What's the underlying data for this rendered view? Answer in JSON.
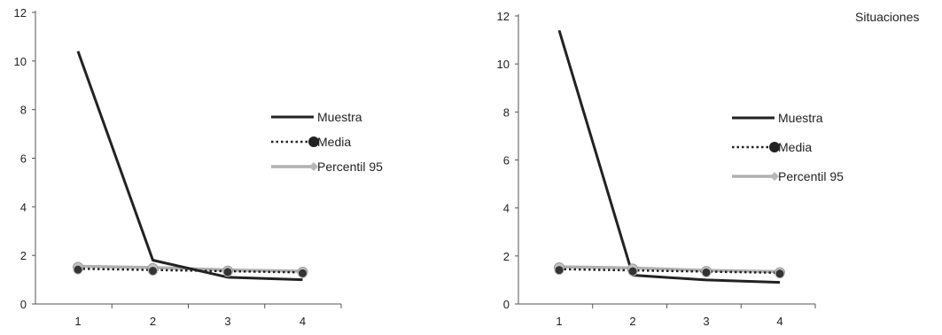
{
  "chart_data": [
    {
      "type": "line",
      "categories": [
        "1",
        "2",
        "3",
        "4"
      ],
      "ylim": [
        0,
        12
      ],
      "yticks": [
        "0",
        "2",
        "4",
        "6",
        "8",
        "10",
        "12"
      ],
      "legend_position": "right",
      "grid": false,
      "series": [
        {
          "name": "Muestra",
          "values": [
            10.4,
            1.8,
            1.1,
            1.0
          ],
          "color": "#222222",
          "style": "solid",
          "marker": "none"
        },
        {
          "name": "Media",
          "values": [
            1.45,
            1.4,
            1.35,
            1.3
          ],
          "color": "#222222",
          "style": "dotted",
          "marker": "circle"
        },
        {
          "name": "Percentil 95",
          "values": [
            1.55,
            1.5,
            1.4,
            1.35
          ],
          "color": "#b0b0b0",
          "style": "solid",
          "marker": "diamond"
        }
      ]
    },
    {
      "type": "line",
      "title": "Situaciones",
      "categories": [
        "1",
        "2",
        "3",
        "4"
      ],
      "ylim": [
        0,
        12
      ],
      "yticks": [
        "0",
        "2",
        "4",
        "6",
        "8",
        "10",
        "12"
      ],
      "legend_position": "right",
      "grid": false,
      "series": [
        {
          "name": "Muestra",
          "values": [
            11.4,
            1.2,
            1.0,
            0.9
          ],
          "color": "#222222",
          "style": "solid",
          "marker": "none"
        },
        {
          "name": "Media",
          "values": [
            1.45,
            1.4,
            1.35,
            1.3
          ],
          "color": "#222222",
          "style": "dotted",
          "marker": "circle"
        },
        {
          "name": "Percentil 95",
          "values": [
            1.55,
            1.5,
            1.4,
            1.35
          ],
          "color": "#b0b0b0",
          "style": "solid",
          "marker": "diamond"
        }
      ]
    }
  ]
}
